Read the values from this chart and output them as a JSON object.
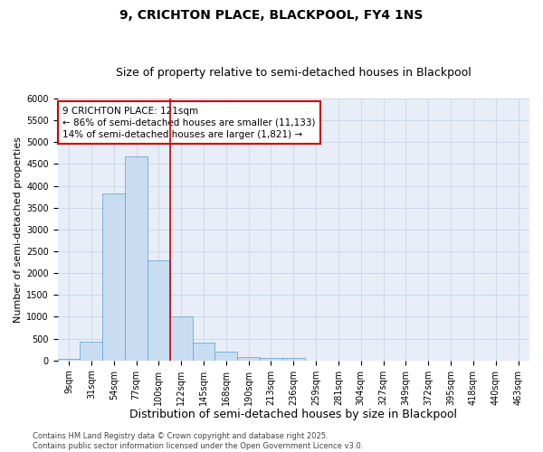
{
  "title1": "9, CRICHTON PLACE, BLACKPOOL, FY4 1NS",
  "title2": "Size of property relative to semi-detached houses in Blackpool",
  "xlabel": "Distribution of semi-detached houses by size in Blackpool",
  "ylabel": "Number of semi-detached properties",
  "categories": [
    "9sqm",
    "31sqm",
    "54sqm",
    "77sqm",
    "100sqm",
    "122sqm",
    "145sqm",
    "168sqm",
    "190sqm",
    "213sqm",
    "236sqm",
    "259sqm",
    "281sqm",
    "304sqm",
    "327sqm",
    "349sqm",
    "372sqm",
    "395sqm",
    "418sqm",
    "440sqm",
    "463sqm"
  ],
  "bar_values": [
    40,
    430,
    3820,
    4680,
    2300,
    1000,
    410,
    210,
    80,
    65,
    60,
    0,
    0,
    0,
    0,
    0,
    0,
    0,
    0,
    0,
    0
  ],
  "bar_color": "#c9ddf2",
  "bar_edge_color": "#6aaad4",
  "property_line_x": 4.5,
  "annotation_text": "9 CRICHTON PLACE: 121sqm\n← 86% of semi-detached houses are smaller (11,133)\n14% of semi-detached houses are larger (1,821) →",
  "annotation_box_color": "#ffffff",
  "annotation_box_edge": "#cc0000",
  "vline_color": "#cc0000",
  "footnote": "Contains HM Land Registry data © Crown copyright and database right 2025.\nContains public sector information licensed under the Open Government Licence v3.0.",
  "ylim": [
    0,
    6000
  ],
  "yticks": [
    0,
    500,
    1000,
    1500,
    2000,
    2500,
    3000,
    3500,
    4000,
    4500,
    5000,
    5500,
    6000
  ],
  "grid_color": "#c8d4e8",
  "bg_color": "#e8eef8",
  "title1_fontsize": 10,
  "title2_fontsize": 9,
  "xlabel_fontsize": 9,
  "ylabel_fontsize": 8,
  "tick_fontsize": 7,
  "annot_fontsize": 7.5
}
